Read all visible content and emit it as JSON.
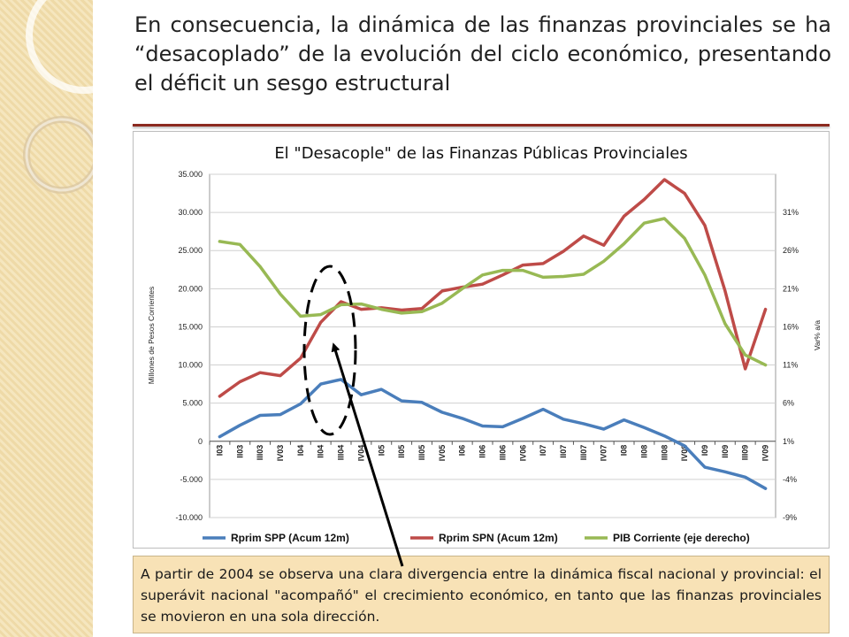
{
  "slide": {
    "title": "En consecuencia, la dinámica de las finanzas provinciales se ha “desacoplado” de la evolución del ciclo económico, presentando el déficit un sesgo estructural",
    "note": "A partir de 2004 se observa una clara divergencia entre la dinámica fiscal nacional y provincial: el superávit nacional \"acompañó\" el crecimiento económico, en tanto que las finanzas provinciales se movieron en una sola dirección."
  },
  "chart_data": {
    "type": "line",
    "title": "El \"Desacople\" de las Finanzas Públicas Provinciales",
    "ylabel": "Millones de Pesos Corrientes",
    "y2label": "Var% a/a",
    "ylim": [
      -10000,
      35000
    ],
    "y_ticks": [
      -10000,
      -5000,
      0,
      5000,
      10000,
      15000,
      20000,
      25000,
      30000,
      35000
    ],
    "y_tick_labels": [
      "-10.000",
      "-5.000",
      "0",
      "5.000",
      "10.000",
      "15.000",
      "20.000",
      "25.000",
      "30.000",
      "35.000"
    ],
    "y2lim": [
      -9,
      36
    ],
    "y2_ticks": [
      -9,
      -4,
      1,
      6,
      11,
      16,
      21,
      26,
      31
    ],
    "y2_tick_labels": [
      "-9%",
      "-4%",
      "1%",
      "6%",
      "11%",
      "16%",
      "21%",
      "26%",
      "31%"
    ],
    "categories": [
      "I03",
      "II03",
      "III03",
      "IV03",
      "I04",
      "II04",
      "III04",
      "IV04",
      "I05",
      "II05",
      "III05",
      "IV05",
      "I06",
      "II06",
      "III06",
      "IV06",
      "I07",
      "II07",
      "III07",
      "IV07",
      "I08",
      "II08",
      "III08",
      "IV08",
      "I09",
      "II09",
      "III09",
      "IV09"
    ],
    "grid": true,
    "legend_position": "bottom",
    "series": [
      {
        "name": "Rprim SPP (Acum 12m)",
        "axis": "left",
        "color": "#4a7ebb",
        "values": [
          600,
          2100,
          3400,
          3500,
          4900,
          7500,
          8100,
          6100,
          6800,
          5300,
          5100,
          3800,
          3000,
          2000,
          1900,
          3000,
          4200,
          2900,
          2300,
          1600,
          2800,
          1800,
          700,
          -600,
          -3400,
          -4000,
          -4700,
          -6200
        ]
      },
      {
        "name": "Rprim SPN (Acum 12m)",
        "axis": "left",
        "color": "#be4b48",
        "values": [
          5900,
          7800,
          9000,
          8600,
          10900,
          15600,
          18300,
          17300,
          17500,
          17200,
          17400,
          19700,
          20200,
          20600,
          21800,
          23100,
          23300,
          24900,
          26900,
          25700,
          29500,
          31700,
          34300,
          32500,
          28300,
          19700,
          9500,
          17300
        ]
      },
      {
        "name": "PIB Corriente (eje derecho)",
        "axis": "right",
        "color": "#98b954",
        "values": [
          27.2,
          26.8,
          23.9,
          20.3,
          17.4,
          17.6,
          18.9,
          19.0,
          18.3,
          17.8,
          18.0,
          19.1,
          21.0,
          22.8,
          23.4,
          23.4,
          22.5,
          22.6,
          22.9,
          24.6,
          26.9,
          29.6,
          30.2,
          27.6,
          22.8,
          16.4,
          12.3,
          11.0
        ]
      }
    ]
  },
  "style": {
    "title_rule_color": "#8c2a1f",
    "annotation_color": "#000000"
  }
}
